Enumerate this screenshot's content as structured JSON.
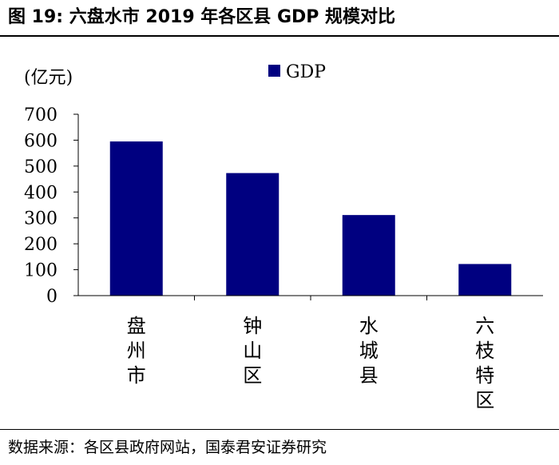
{
  "header": {
    "title": "图 19:  六盘水市 2019 年各区县  GDP  规模对比"
  },
  "footer": {
    "source": "数据来源：各区县政府网站，国泰君安证券研究"
  },
  "chart_data": {
    "type": "bar",
    "title": "",
    "ylabel": "(亿元)",
    "xlabel": "",
    "legend": {
      "position": "top-center",
      "entries": [
        "GDP"
      ]
    },
    "categories": [
      "盘州市",
      "钟山区",
      "水城县",
      "六枝特区"
    ],
    "series": [
      {
        "name": "GDP",
        "color": "#000080",
        "values": [
          595,
          473,
          311,
          122
        ]
      }
    ],
    "ylim": [
      0,
      700
    ],
    "yticks": [
      0,
      100,
      200,
      300,
      400,
      500,
      600,
      700
    ],
    "grid": false
  }
}
